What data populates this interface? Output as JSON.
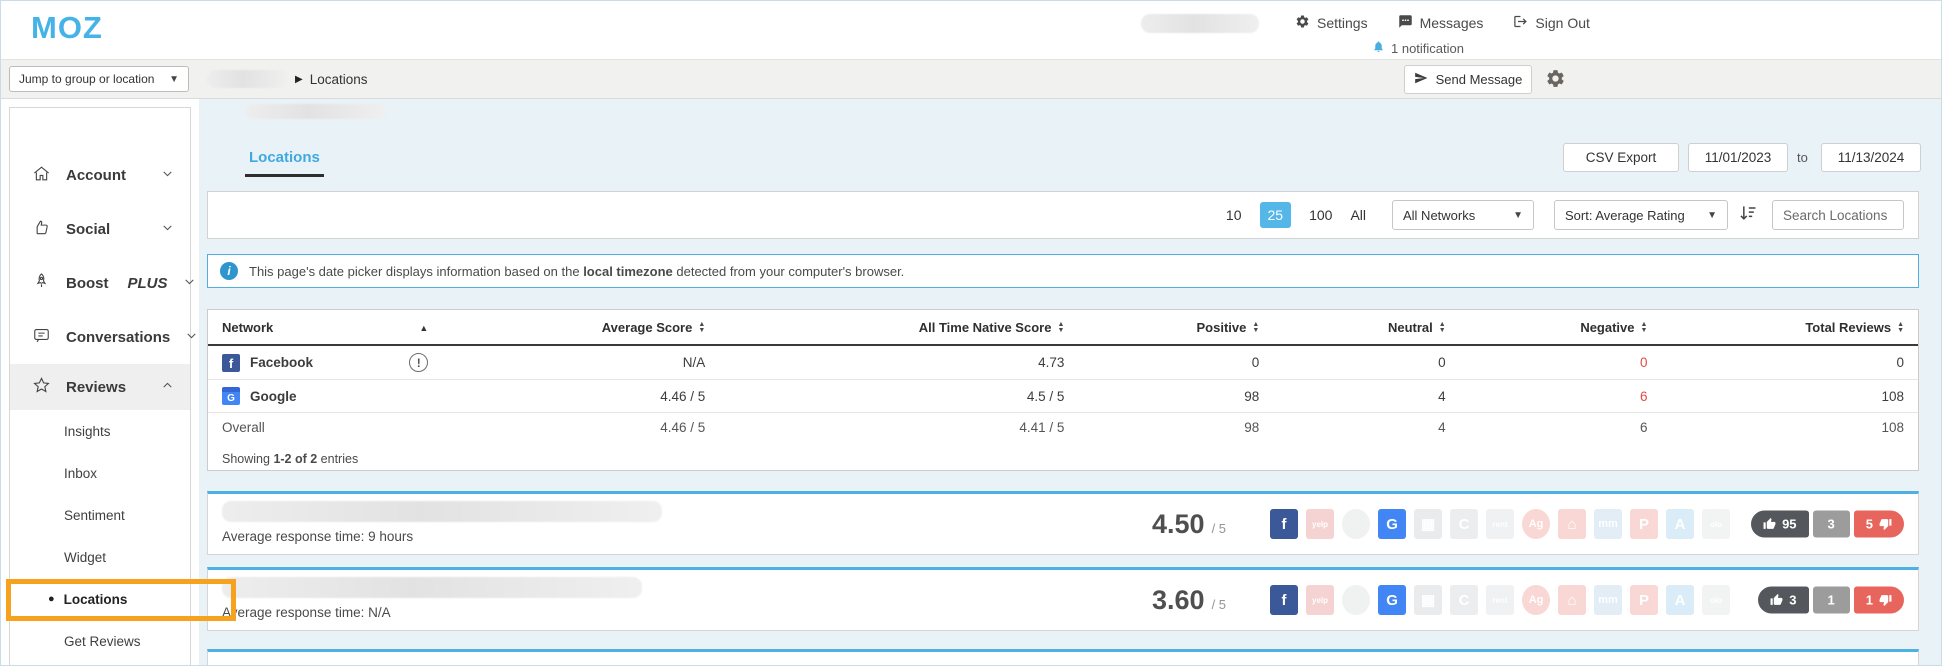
{
  "colors": {
    "brand_blue": "#45b3e8",
    "tab_blue": "#3fa9e0",
    "selected_page_bg": "#54b7e8",
    "info_border_blue": "#54aedd",
    "card_top_border": "#4db1e2",
    "negative_red": "#e04b41",
    "orange_highlight": "#f6a21e",
    "pill_positive": "#54585c",
    "pill_neutral": "#9c9c9c",
    "pill_negative": "#e8655d"
  },
  "header": {
    "logo": "MOZ",
    "nav": {
      "settings": "Settings",
      "messages": "Messages",
      "sign_out": "Sign Out",
      "notification": "1 notification"
    }
  },
  "subheader": {
    "jump_placeholder": "Jump to group or location",
    "breadcrumb_sep": "▶",
    "breadcrumb_current": "Locations",
    "send_message": "Send Message"
  },
  "sidebar": {
    "account": "Account",
    "social": "Social",
    "boost": "Boost",
    "boost_suffix": "PLUS",
    "conversations": "Conversations",
    "reviews": "Reviews",
    "sub": {
      "insights": "Insights",
      "inbox": "Inbox",
      "sentiment": "Sentiment",
      "widget": "Widget",
      "locations": "Locations",
      "get_reviews": "Get Reviews"
    },
    "active_bullet": "●"
  },
  "main": {
    "tab": "Locations",
    "csv_export": "CSV Export",
    "date_from": "11/01/2023",
    "to": "to",
    "date_to": "11/13/2024",
    "page_sizes": {
      "s10": "10",
      "s25": "25",
      "s100": "100",
      "all": "All"
    },
    "network_filter": "All Networks",
    "sort_filter": "Sort: Average Rating",
    "search_placeholder": "Search Locations",
    "info": {
      "pre": "This page's date picker displays information based on the ",
      "bold": "local timezone",
      "post": " detected from your computer's browser."
    }
  },
  "table": {
    "headers": {
      "network": "Network",
      "avg": "Average Score",
      "native": "All Time Native Score",
      "positive": "Positive",
      "neutral": "Neutral",
      "negative": "Negative",
      "total": "Total Reviews"
    },
    "rows": [
      {
        "network": "Facebook",
        "warn": "!",
        "avg": "N/A",
        "native": "4.73",
        "positive": "0",
        "neutral": "0",
        "negative": "0",
        "total": "0"
      },
      {
        "network": "Google",
        "avg": "4.46 / 5",
        "native": "4.5 / 5",
        "positive": "98",
        "neutral": "4",
        "negative": "6",
        "total": "108"
      },
      {
        "network": "Overall",
        "avg": "4.46 / 5",
        "native": "4.41 / 5",
        "positive": "98",
        "neutral": "4",
        "negative": "6",
        "total": "108"
      }
    ],
    "showing": {
      "pre": "Showing ",
      "bold": "1-2 of 2",
      "post": " entries"
    }
  },
  "network_icons": [
    {
      "name": "facebook",
      "text": "f",
      "bg": "#3b5998",
      "fg": "#ffffff",
      "round": false,
      "active": true
    },
    {
      "name": "yelp",
      "text": "yelp",
      "bg": "#d9534f",
      "fg": "#ffffff",
      "round": false,
      "active": false
    },
    {
      "name": "circle",
      "text": "",
      "bg": "#c4cacd",
      "fg": "#ffffff",
      "round": true,
      "active": false
    },
    {
      "name": "google",
      "text": "G",
      "bg": "#4285f4",
      "fg": "#ffffff",
      "round": false,
      "active": true
    },
    {
      "name": "building",
      "text": "▦",
      "bg": "#aab4ba",
      "fg": "#ffffff",
      "round": false,
      "active": false
    },
    {
      "name": "pinwheel",
      "text": "C",
      "bg": "#b6bcc0",
      "fg": "#ffffff",
      "round": false,
      "active": false
    },
    {
      "name": "rent-com",
      "text": "rent",
      "bg": "#c2c8cc",
      "fg": "#ffffff",
      "round": false,
      "active": false
    },
    {
      "name": "angi",
      "text": "Ag",
      "bg": "#e8655d",
      "fg": "#ffffff",
      "round": true,
      "active": false
    },
    {
      "name": "hotpads",
      "text": "⌂",
      "bg": "#e8655d",
      "fg": "#ffffff",
      "round": false,
      "active": false
    },
    {
      "name": "mm",
      "text": "mm",
      "bg": "#8fbcd9",
      "fg": "#ffffff",
      "round": false,
      "active": false
    },
    {
      "name": "p-network",
      "text": "P",
      "bg": "#e8655d",
      "fg": "#ffffff",
      "round": false,
      "active": false
    },
    {
      "name": "app-store",
      "text": "A",
      "bg": "#6cb6e3",
      "fg": "#ffffff",
      "round": false,
      "active": false
    },
    {
      "name": "olo",
      "text": "olo",
      "bg": "#cfd4d6",
      "fg": "#ffffff",
      "round": false,
      "active": false
    }
  ],
  "cards": [
    {
      "response_time": "Average response time: 9 hours",
      "rating": "4.50",
      "out_of": "/ 5",
      "likes": "95",
      "neutral": "3",
      "dislikes": "5"
    },
    {
      "response_time": "Average response time: N/A",
      "rating": "3.60",
      "out_of": "/ 5",
      "likes": "3",
      "neutral": "1",
      "dislikes": "1"
    }
  ]
}
